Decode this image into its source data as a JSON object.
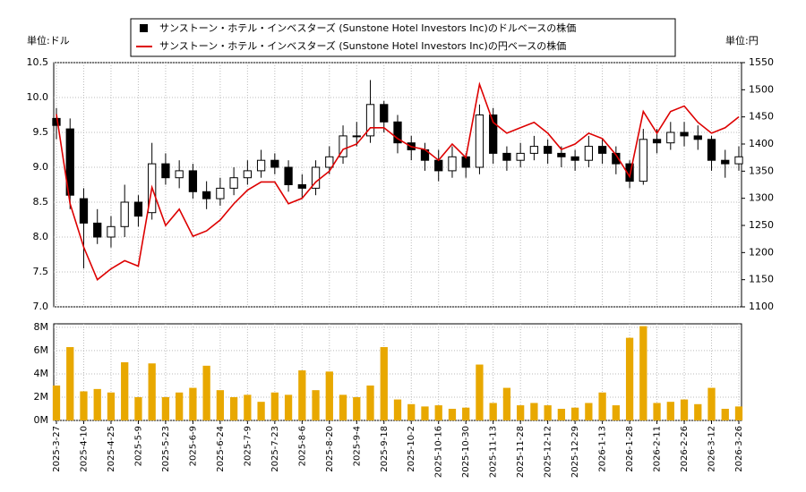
{
  "chart_data": [
    {
      "type": "candlestick",
      "y_unit_label": "単位:ドル",
      "y2_unit_label": "単位:円",
      "ylim": [
        7.0,
        10.5
      ],
      "yticks": [
        {
          "value": 7.0,
          "label": "7.0"
        },
        {
          "value": 7.5,
          "label": "7.5"
        },
        {
          "value": 8.0,
          "label": "8.0"
        },
        {
          "value": 8.5,
          "label": "8.5"
        },
        {
          "value": 9.0,
          "label": "9.0"
        },
        {
          "value": 9.5,
          "label": "9.5"
        },
        {
          "value": 10.0,
          "label": "10.0"
        },
        {
          "value": 10.5,
          "label": "10.5"
        }
      ],
      "y2lim": [
        1100,
        1550
      ],
      "y2ticks": [
        1100,
        1150,
        1200,
        1250,
        1300,
        1350,
        1400,
        1450,
        1500,
        1550
      ],
      "grid": true,
      "legend": "top",
      "series": [
        {
          "name": "サンストーン・ホテル・インベスターズ (Sunstone Hotel Investors Inc)のドルベースの株価",
          "color": "#000000",
          "open": [
            9.7,
            9.55,
            8.55,
            8.2,
            8.0,
            8.15,
            8.5,
            8.35,
            9.05,
            8.85,
            8.95,
            8.65,
            8.55,
            8.7,
            8.85,
            8.95,
            9.1,
            9.0,
            8.75,
            8.7,
            9.0,
            9.15,
            9.45,
            9.45,
            9.9,
            9.65,
            9.35,
            9.25,
            9.1,
            8.95,
            9.15,
            9.0,
            9.75,
            9.2,
            9.1,
            9.2,
            9.3,
            9.2,
            9.15,
            9.1,
            9.3,
            9.2,
            9.05,
            8.8,
            9.4,
            9.35,
            9.5,
            9.45,
            9.4,
            9.1,
            9.05
          ],
          "high": [
            9.85,
            9.7,
            8.7,
            8.4,
            8.3,
            8.75,
            8.6,
            9.35,
            9.2,
            9.1,
            9.05,
            8.8,
            8.85,
            9.0,
            9.1,
            9.25,
            9.2,
            9.1,
            8.9,
            9.1,
            9.3,
            9.6,
            9.65,
            10.25,
            9.95,
            9.75,
            9.45,
            9.35,
            9.25,
            9.3,
            9.2,
            9.9,
            9.85,
            9.3,
            9.35,
            9.45,
            9.4,
            9.3,
            9.25,
            9.45,
            9.4,
            9.3,
            9.1,
            9.55,
            9.55,
            9.65,
            9.65,
            9.6,
            9.45,
            9.25,
            9.3
          ],
          "low": [
            9.4,
            8.4,
            7.55,
            7.9,
            7.85,
            8.0,
            8.15,
            8.25,
            8.75,
            8.7,
            8.55,
            8.4,
            8.45,
            8.6,
            8.75,
            8.85,
            8.9,
            8.65,
            8.55,
            8.6,
            8.9,
            9.05,
            9.3,
            9.35,
            9.5,
            9.2,
            9.1,
            8.95,
            8.8,
            8.85,
            8.85,
            8.9,
            9.05,
            8.95,
            9.0,
            9.1,
            9.05,
            9.0,
            8.95,
            9.0,
            9.05,
            8.9,
            8.7,
            8.75,
            9.2,
            9.25,
            9.3,
            9.25,
            8.95,
            8.85,
            8.95
          ],
          "close": [
            9.6,
            8.6,
            8.2,
            8.0,
            8.15,
            8.5,
            8.3,
            9.05,
            8.85,
            8.95,
            8.65,
            8.55,
            8.7,
            8.85,
            8.95,
            9.1,
            9.0,
            8.75,
            8.7,
            9.0,
            9.15,
            9.45,
            9.45,
            9.9,
            9.65,
            9.35,
            9.25,
            9.1,
            8.95,
            9.15,
            9.0,
            9.75,
            9.2,
            9.1,
            9.2,
            9.3,
            9.2,
            9.15,
            9.1,
            9.3,
            9.2,
            9.05,
            8.8,
            9.4,
            9.35,
            9.5,
            9.45,
            9.4,
            9.1,
            9.05,
            9.15
          ]
        },
        {
          "name": "サンストーン・ホテル・インベスターズ (Sunstone Hotel Investors Inc)の円ベースの株価",
          "color": "#dd0000",
          "axis": "y2",
          "values": [
            1455,
            1290,
            1210,
            1150,
            1170,
            1185,
            1175,
            1320,
            1250,
            1280,
            1230,
            1240,
            1260,
            1290,
            1315,
            1330,
            1330,
            1290,
            1300,
            1330,
            1350,
            1390,
            1400,
            1430,
            1430,
            1410,
            1395,
            1390,
            1370,
            1400,
            1375,
            1510,
            1440,
            1420,
            1430,
            1440,
            1420,
            1390,
            1400,
            1420,
            1410,
            1380,
            1340,
            1460,
            1420,
            1460,
            1470,
            1440,
            1420,
            1430,
            1450
          ]
        }
      ]
    },
    {
      "type": "bar",
      "color": "#e8a800",
      "grid": true,
      "ylim": [
        0,
        8.3
      ],
      "yticks": [
        {
          "value": 0,
          "label": "0M"
        },
        {
          "value": 2,
          "label": "2M"
        },
        {
          "value": 4,
          "label": "4M"
        },
        {
          "value": 6,
          "label": "6M"
        },
        {
          "value": 8,
          "label": "8M"
        }
      ],
      "categories": [
        "2025-3-27",
        null,
        "2025-4-10",
        null,
        "2025-4-25",
        null,
        "2025-5-9",
        null,
        "2025-5-23",
        null,
        "2025-6-9",
        null,
        "2025-6-24",
        null,
        "2025-7-9",
        null,
        "2025-7-23",
        null,
        "2025-8-6",
        null,
        "2025-8-20",
        null,
        "2025-9-4",
        null,
        "2025-9-18",
        null,
        "2025-10-2",
        null,
        "2025-10-16",
        null,
        "2025-10-30",
        null,
        "2025-11-13",
        null,
        "2025-11-28",
        null,
        "2025-12-12",
        null,
        "2025-12-29",
        null,
        "2026-1-13",
        null,
        "2026-1-28",
        null,
        "2026-2-11",
        null,
        "2026-2-26",
        null,
        "2026-3-12",
        null,
        "2026-3-26"
      ],
      "values": [
        3.0,
        6.3,
        2.5,
        2.7,
        2.4,
        5.0,
        2.0,
        4.9,
        2.0,
        2.4,
        2.8,
        4.7,
        2.6,
        2.0,
        2.2,
        1.6,
        2.4,
        2.2,
        4.3,
        2.6,
        4.2,
        2.2,
        2.0,
        3.0,
        6.3,
        1.8,
        1.4,
        1.2,
        1.3,
        1.0,
        1.1,
        4.8,
        1.5,
        2.8,
        1.3,
        1.5,
        1.3,
        1.0,
        1.1,
        1.5,
        2.4,
        1.3,
        7.1,
        8.1,
        1.5,
        1.6,
        1.8,
        1.4,
        2.8,
        1.0,
        1.2
      ]
    }
  ]
}
